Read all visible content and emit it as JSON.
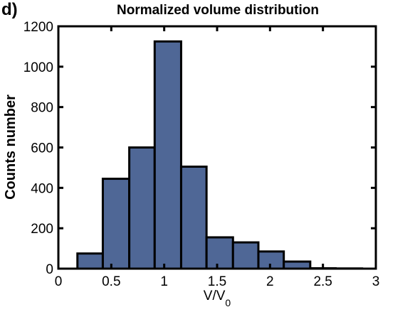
{
  "panel_label": "d)",
  "chart_data": {
    "type": "bar",
    "title": "Normalized volume distribution",
    "xlabel": {
      "base": "V/V",
      "subscript": "0"
    },
    "ylabel": "Counts number",
    "xlim": [
      0,
      3
    ],
    "ylim": [
      0,
      1200
    ],
    "xticks": [
      0,
      0.5,
      1,
      1.5,
      2,
      2.5,
      3
    ],
    "xtick_labels": [
      "0",
      "0.5",
      "1",
      "1.5",
      "2",
      "2.5",
      "3"
    ],
    "yticks": [
      0,
      200,
      400,
      600,
      800,
      1000,
      1200
    ],
    "ytick_labels": [
      "0",
      "200",
      "400",
      "600",
      "800",
      "1000",
      "1200"
    ],
    "grid": false,
    "bar_color": "#4f6796",
    "bins": [
      {
        "x0": 0.18,
        "x1": 0.42,
        "count": 75
      },
      {
        "x0": 0.42,
        "x1": 0.67,
        "count": 445
      },
      {
        "x0": 0.67,
        "x1": 0.91,
        "count": 600
      },
      {
        "x0": 0.91,
        "x1": 1.16,
        "count": 1125
      },
      {
        "x0": 1.16,
        "x1": 1.4,
        "count": 505
      },
      {
        "x0": 1.4,
        "x1": 1.65,
        "count": 155
      },
      {
        "x0": 1.65,
        "x1": 1.89,
        "count": 130
      },
      {
        "x0": 1.89,
        "x1": 2.13,
        "count": 85
      },
      {
        "x0": 2.13,
        "x1": 2.38,
        "count": 35
      },
      {
        "x0": 2.38,
        "x1": 2.62,
        "count": 2
      },
      {
        "x0": 2.62,
        "x1": 2.87,
        "count": 1
      }
    ]
  }
}
